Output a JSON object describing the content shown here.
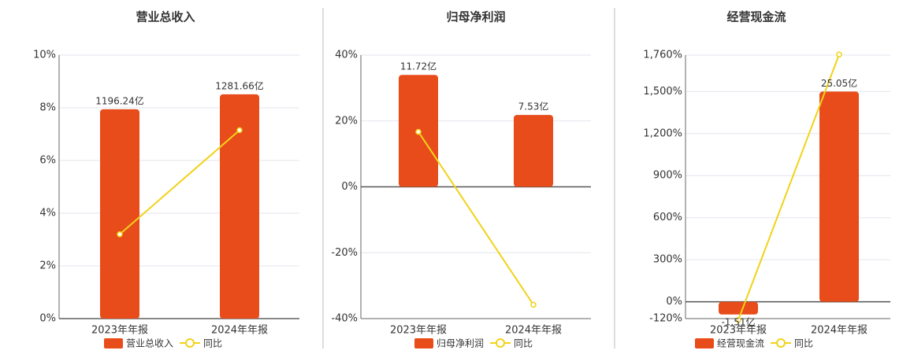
{
  "chart_data": [
    {
      "type": "bar",
      "title": "营业总收入",
      "categories": [
        "2023年年报",
        "2024年年报"
      ],
      "series": [
        {
          "name": "营业总收入",
          "color": "#e84c1a",
          "values": [
            1196.24,
            1281.66
          ],
          "value_labels": [
            "1196.24亿",
            "1281.66亿"
          ],
          "axis": "y2"
        },
        {
          "name": "同比",
          "type": "line",
          "color": "#f2d21a",
          "values": [
            3.2,
            7.15
          ]
        }
      ],
      "ylim": [
        0,
        10
      ],
      "yticks": [
        {
          "value": 0,
          "label": "0%"
        },
        {
          "value": 2,
          "label": "2%"
        },
        {
          "value": 4,
          "label": "4%"
        },
        {
          "value": 6,
          "label": "6%"
        },
        {
          "value": 8,
          "label": "8%"
        },
        {
          "value": 10,
          "label": "10%"
        }
      ],
      "y2lim": [
        0,
        1506
      ],
      "grid": true
    },
    {
      "type": "bar",
      "title": "归母净利润",
      "categories": [
        "2023年年报",
        "2024年年报"
      ],
      "series": [
        {
          "name": "归母净利润",
          "color": "#e84c1a",
          "values": [
            11.72,
            7.53
          ],
          "value_labels": [
            "11.72亿",
            "7.53亿"
          ],
          "axis": "y2"
        },
        {
          "name": "同比",
          "type": "line",
          "color": "#f2d21a",
          "values": [
            16.7,
            -35.8
          ]
        }
      ],
      "ylim": [
        -40,
        40
      ],
      "yticks": [
        {
          "value": -40,
          "label": "-40%"
        },
        {
          "value": -20,
          "label": "-20%"
        },
        {
          "value": 0,
          "label": "0%"
        },
        {
          "value": 20,
          "label": "20%"
        },
        {
          "value": 40,
          "label": "40%"
        }
      ],
      "y2lim": [
        -13.8,
        13.8
      ],
      "grid": true
    },
    {
      "type": "bar",
      "title": "经营现金流",
      "categories": [
        "2023年年报",
        "2024年年报"
      ],
      "series": [
        {
          "name": "经营现金流",
          "color": "#e84c1a",
          "values": [
            -1.51,
            25.05
          ],
          "value_labels": [
            "-1.51亿",
            "25.05亿"
          ],
          "axis": "y2"
        },
        {
          "name": "同比",
          "type": "line",
          "color": "#f2d21a",
          "values": [
            -130,
            1764
          ]
        }
      ],
      "ylim": [
        -120,
        1760
      ],
      "yticks": [
        {
          "value": -120,
          "label": "-120%"
        },
        {
          "value": 0,
          "label": "0%"
        },
        {
          "value": 300,
          "label": "300%"
        },
        {
          "value": 600,
          "label": "600%"
        },
        {
          "value": 900,
          "label": "900%"
        },
        {
          "value": 1200,
          "label": "1,200%"
        },
        {
          "value": 1500,
          "label": "1,500%"
        },
        {
          "value": 1760,
          "label": "1,760%"
        }
      ],
      "y2lim": [
        -2,
        29.4
      ],
      "grid": true
    }
  ]
}
